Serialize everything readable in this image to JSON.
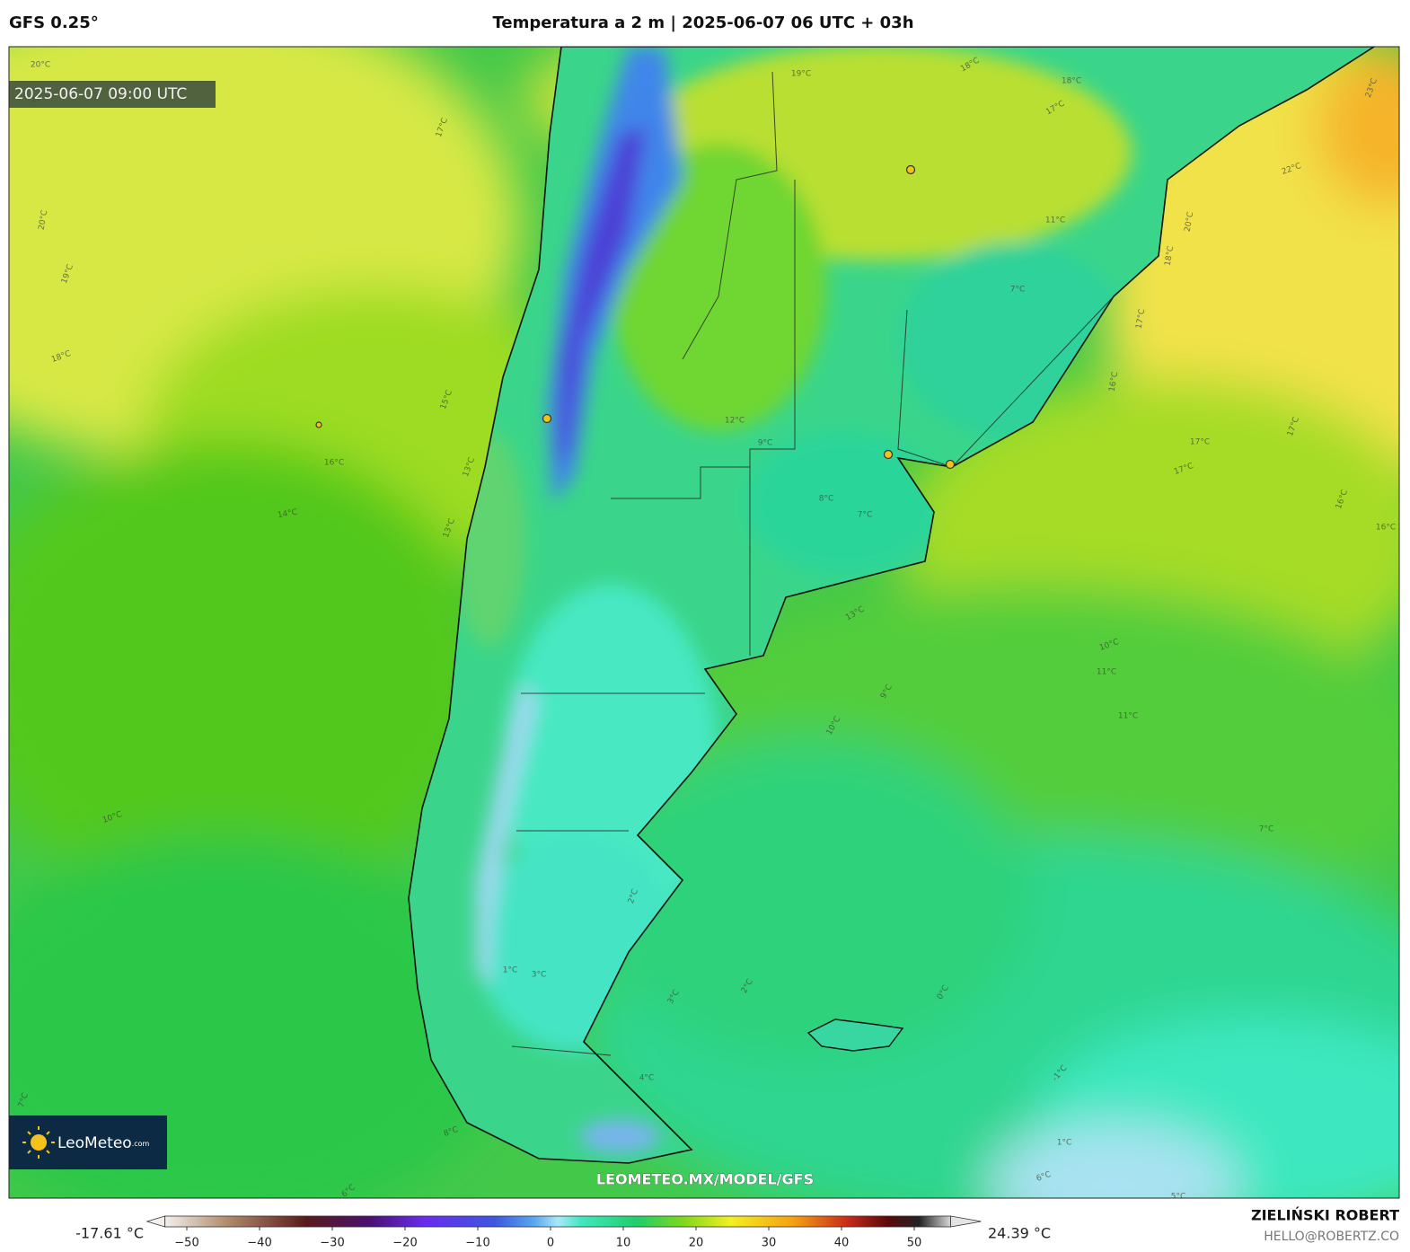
{
  "header": {
    "model": "GFS 0.25°",
    "title": "Temperatura a 2 m | 2025-06-07 06 UTC + 03h"
  },
  "map": {
    "valid_time": "2025-06-07 09:00 UTC",
    "watermark": "LEOMETEO.MX/MODEL/GFS",
    "logo": "LeoMeteo",
    "logo_suffix": ".com",
    "contour_labels": [
      "20°C",
      "19°C",
      "20°C",
      "19°C",
      "18°C",
      "17°C",
      "15°C",
      "16°C",
      "14°C",
      "13°C",
      "13°C",
      "12°C",
      "9°C",
      "8°C",
      "7°C",
      "19°C",
      "18°C",
      "18°C",
      "17°C",
      "22°C",
      "23°C",
      "20°C",
      "18°C",
      "11°C",
      "7°C",
      "17°C",
      "16°C",
      "17°C",
      "17°C",
      "17°C",
      "16°C",
      "16°C",
      "13°C",
      "10°C",
      "11°C",
      "11°C",
      "9°C",
      "10°C",
      "7°C",
      "10°C",
      "8°C",
      "7°C",
      "6°C",
      "4°C",
      "3°C",
      "2°C",
      "0°C",
      "-1°C",
      "1°C",
      "6°C",
      "5°C",
      "3°C",
      "2°C",
      "1°C"
    ]
  },
  "colorbar": {
    "min_label": "-17.61 °C",
    "max_label": "24.39 °C",
    "range": [
      -53,
      55
    ],
    "ticks": [
      {
        "value": -50,
        "label": "−50"
      },
      {
        "value": -40,
        "label": "−40"
      },
      {
        "value": -30,
        "label": "−30"
      },
      {
        "value": -20,
        "label": "−20"
      },
      {
        "value": -10,
        "label": "−10"
      },
      0,
      10,
      20,
      30,
      40,
      50
    ]
  },
  "credits": {
    "author": "ZIELIŃSKI ROBERT",
    "email": "HELLO@ROBERTZ.CO"
  }
}
